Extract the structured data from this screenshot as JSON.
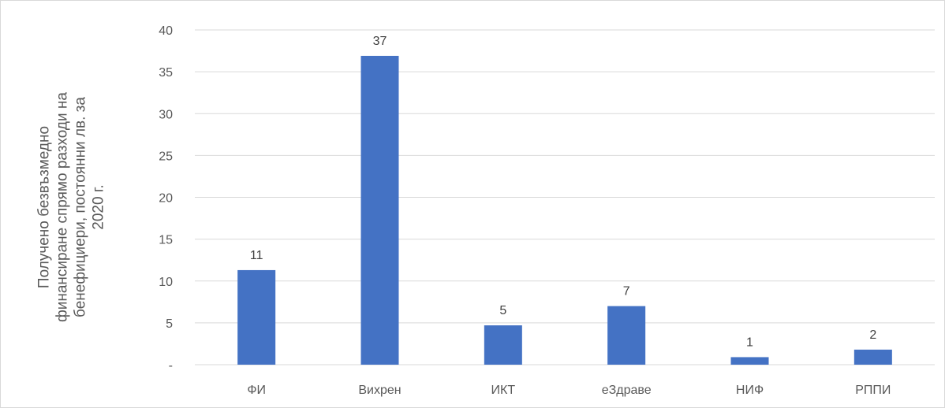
{
  "chart_data": {
    "type": "bar",
    "title": "",
    "xlabel": "",
    "ylabel_lines": [
      "Получено безвъзмедно",
      "финансиране спрямо разходи на",
      "бенефициери, постоянни лв. за",
      "2020 г."
    ],
    "categories": [
      "ФИ",
      "Вихрен",
      "ИКТ",
      "еЗдраве",
      "НИФ",
      "РППИ"
    ],
    "values": [
      11.3,
      36.9,
      4.7,
      7.0,
      0.9,
      1.8
    ],
    "data_labels": [
      "11",
      "37",
      "5",
      "7",
      "1",
      "2"
    ],
    "y_ticks": [
      {
        "value": 0,
        "label": "-"
      },
      {
        "value": 5,
        "label": "5"
      },
      {
        "value": 10,
        "label": "10"
      },
      {
        "value": 15,
        "label": "15"
      },
      {
        "value": 20,
        "label": "20"
      },
      {
        "value": 25,
        "label": "25"
      },
      {
        "value": 30,
        "label": "30"
      },
      {
        "value": 35,
        "label": "35"
      },
      {
        "value": 40,
        "label": "40"
      }
    ],
    "ylim": [
      0,
      40
    ],
    "grid": true,
    "legend": "none",
    "colors": {
      "bar": "#4472c4",
      "grid": "#d9d9d9"
    }
  }
}
